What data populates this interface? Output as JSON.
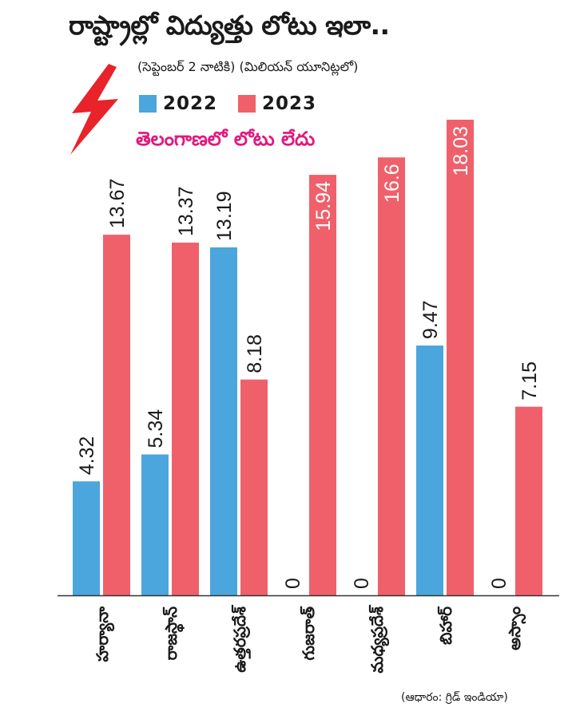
{
  "header": {
    "title": "రాష్ట్రాల్లో విద్యుత్తు లోటు ఇలా..",
    "subtitle": "(సెప్టెంబర్ 2 నాటికి) (మిలియన్ యూనిట్లలో)",
    "note": "తెలంగాణలో లోటు లేదు",
    "source": "(ఆధారం: గ్రిడ్ ఇండియా)"
  },
  "icons": {
    "bolt": "lightning-bolt-icon"
  },
  "colors": {
    "series_2022": "#4aa6dc",
    "series_2023": "#f0606a",
    "note": "#e5177e",
    "bolt": "#e8232a"
  },
  "chart_data": {
    "type": "bar",
    "categories": [
      "హర్యానా",
      "రాజస్థాన్",
      "ఉత్తరప్రదేశ్",
      "గుజరాత్",
      "మధ్యప్రదేశ్",
      "బిహార్",
      "అస్సాం"
    ],
    "series": [
      {
        "name": "2022",
        "values": [
          4.32,
          5.34,
          13.19,
          0,
          0,
          9.47,
          0
        ],
        "labels": [
          "4.32",
          "5.34",
          "13.19",
          "0",
          "0",
          "9.47",
          "0"
        ]
      },
      {
        "name": "2023",
        "values": [
          13.67,
          13.37,
          8.18,
          15.94,
          16.6,
          18.03,
          7.15
        ],
        "labels": [
          "13.67",
          "13.37",
          "8.18",
          "15.94",
          "16.6",
          "18.03",
          "7.15"
        ]
      }
    ],
    "ylim": [
      0,
      18.03
    ],
    "grid": false,
    "legend": "top-left"
  }
}
